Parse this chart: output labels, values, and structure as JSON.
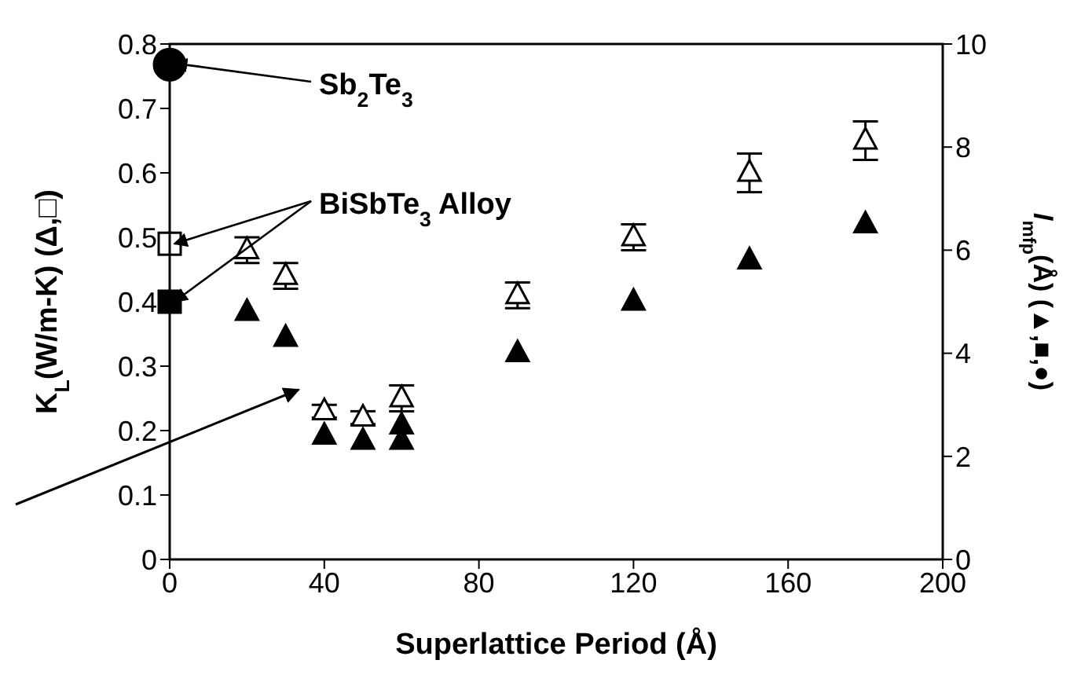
{
  "chart_data": {
    "type": "scatter",
    "xlabel": "Superlattice Period (Å)",
    "ylabel": "K$_{L}$(W/m-K)  (Δ,□)",
    "y2label": "l$_{mfp}$(Å)  (▲,■,●)",
    "xlim": [
      0,
      200
    ],
    "xticks": [
      0,
      40,
      80,
      120,
      160,
      200
    ],
    "ylim": [
      0,
      0.8
    ],
    "yticks": [
      0,
      0.1,
      0.2,
      0.3,
      0.4,
      0.5,
      0.6,
      0.7,
      0.8
    ],
    "y2lim": [
      0,
      10
    ],
    "y2ticks": [
      0,
      2,
      4,
      6,
      8,
      10
    ],
    "grid": false,
    "legend": false,
    "series": [
      {
        "type": "scatter",
        "marker": "triangle",
        "color": "#ffffff",
        "x": [
          20,
          30,
          40,
          50,
          60,
          90,
          120,
          150,
          180
        ],
        "values": [
          0.48,
          0.44,
          0.23,
          0.22,
          0.25,
          0.41,
          0.5,
          0.6,
          0.65
        ],
        "errors": [
          0.02,
          0.02,
          0.01,
          0.01,
          0.02,
          0.02,
          0.02,
          0.03,
          0.03
        ]
      },
      {
        "type": "scatter",
        "marker": "triangle",
        "color": "#000000",
        "axis": "y2",
        "x": [
          20,
          30,
          40,
          50,
          60,
          60,
          90,
          120,
          150,
          180
        ],
        "values": [
          4.8,
          4.3,
          2.4,
          2.3,
          2.6,
          2.3,
          4.0,
          5.0,
          5.8,
          6.5
        ]
      },
      {
        "type": "scatter",
        "marker": "square",
        "color": "#ffffff",
        "x": [
          0
        ],
        "values": [
          0.49
        ]
      },
      {
        "type": "scatter",
        "marker": "square",
        "color": "#000000",
        "axis": "y2",
        "x": [
          0
        ],
        "values": [
          5.0
        ]
      },
      {
        "type": "scatter",
        "marker": "circle",
        "color": "#000000",
        "axis": "y2",
        "x": [
          0
        ],
        "values": [
          9.6
        ]
      }
    ],
    "annotations": [
      {
        "text": "Sb$_{2}$Te$_{3}$",
        "x": 0,
        "y": 0.77
      },
      {
        "text": "BiSbTe$_{3}$ Alloy",
        "x": 0,
        "y": 0.49
      }
    ]
  }
}
